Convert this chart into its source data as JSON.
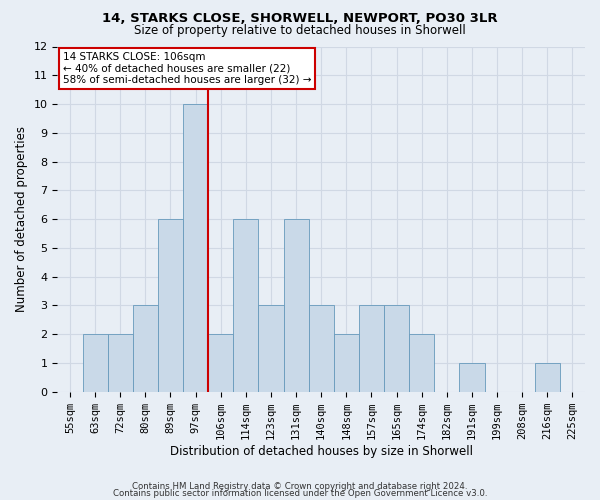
{
  "title": "14, STARKS CLOSE, SHORWELL, NEWPORT, PO30 3LR",
  "subtitle": "Size of property relative to detached houses in Shorwell",
  "xlabel": "Distribution of detached houses by size in Shorwell",
  "ylabel": "Number of detached properties",
  "bin_labels": [
    "55sqm",
    "63sqm",
    "72sqm",
    "80sqm",
    "89sqm",
    "97sqm",
    "106sqm",
    "114sqm",
    "123sqm",
    "131sqm",
    "140sqm",
    "148sqm",
    "157sqm",
    "165sqm",
    "174sqm",
    "182sqm",
    "191sqm",
    "199sqm",
    "208sqm",
    "216sqm",
    "225sqm"
  ],
  "bar_values": [
    0,
    2,
    2,
    3,
    6,
    10,
    2,
    6,
    3,
    6,
    3,
    2,
    3,
    3,
    2,
    0,
    1,
    0,
    0,
    1,
    0
  ],
  "bar_color": "#c9d9e8",
  "bar_edge_color": "#6699bb",
  "vline_index": 5,
  "vline_color": "#cc0000",
  "annotation_title": "14 STARKS CLOSE: 106sqm",
  "annotation_line1": "← 40% of detached houses are smaller (22)",
  "annotation_line2": "58% of semi-detached houses are larger (32) →",
  "annotation_box_color": "#ffffff",
  "annotation_box_edge": "#cc0000",
  "ylim": [
    0,
    12
  ],
  "yticks": [
    0,
    1,
    2,
    3,
    4,
    5,
    6,
    7,
    8,
    9,
    10,
    11,
    12
  ],
  "grid_color": "#d0d8e4",
  "bg_color": "#e8eef5",
  "footer1": "Contains HM Land Registry data © Crown copyright and database right 2024.",
  "footer2": "Contains public sector information licensed under the Open Government Licence v3.0."
}
